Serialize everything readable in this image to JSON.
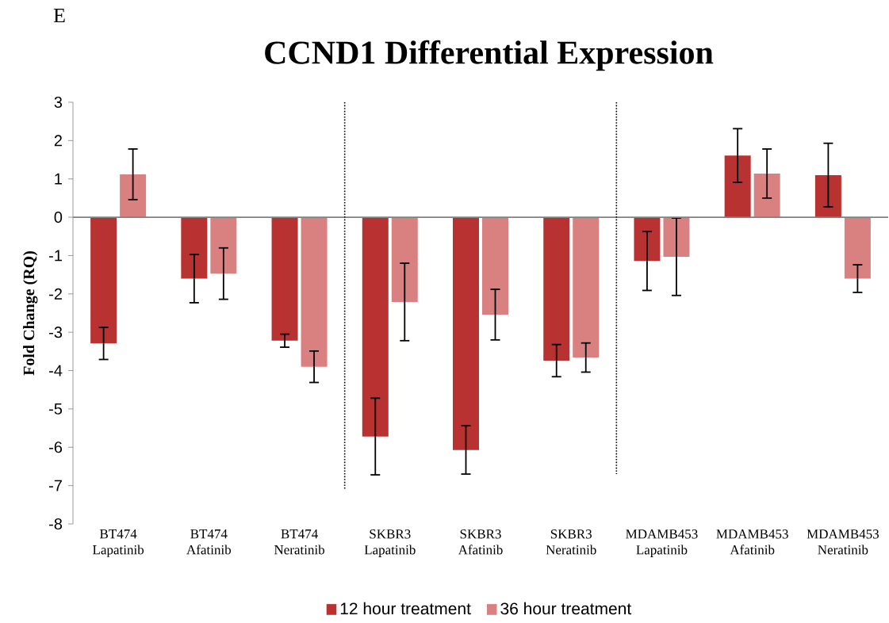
{
  "chart_data": {
    "type": "bar",
    "title": "CCND1 Differential Expression",
    "ylabel": "Fold Change (RQ)",
    "annotations": [
      "E"
    ],
    "categories": [
      "BT474 Lapatinib",
      "BT474 Afatinib",
      "BT474 Neratinib",
      "SKBR3 Lapatinib",
      "SKBR3 Afatinib",
      "SKBR3 Neratinib",
      "MDAMB453 Lapatinib",
      "MDAMB453 Afatinib",
      "MDAMB453 Neratinib"
    ],
    "series": [
      {
        "name": "12 hour treatment",
        "color": "#b83232",
        "values": [
          -3.29,
          -1.6,
          -3.22,
          -5.72,
          -6.07,
          -3.74,
          -1.14,
          1.61,
          1.1
        ],
        "errors": [
          0.42,
          0.63,
          0.17,
          1.0,
          0.63,
          0.42,
          0.77,
          0.7,
          0.83
        ]
      },
      {
        "name": "36 hour treatment",
        "color": "#d98080",
        "values": [
          1.12,
          -1.47,
          -3.9,
          -2.21,
          -2.54,
          -3.66,
          -1.03,
          1.14,
          -1.6
        ],
        "errors": [
          0.66,
          0.67,
          0.41,
          1.01,
          0.66,
          0.38,
          1.01,
          0.64,
          0.36
        ]
      }
    ],
    "ylim": [
      -8,
      3
    ],
    "yticks": [
      -8,
      -7,
      -6,
      -5,
      -4,
      -3,
      -2,
      -1,
      0,
      1,
      2,
      3
    ],
    "grid": false,
    "legend": "bottom"
  }
}
